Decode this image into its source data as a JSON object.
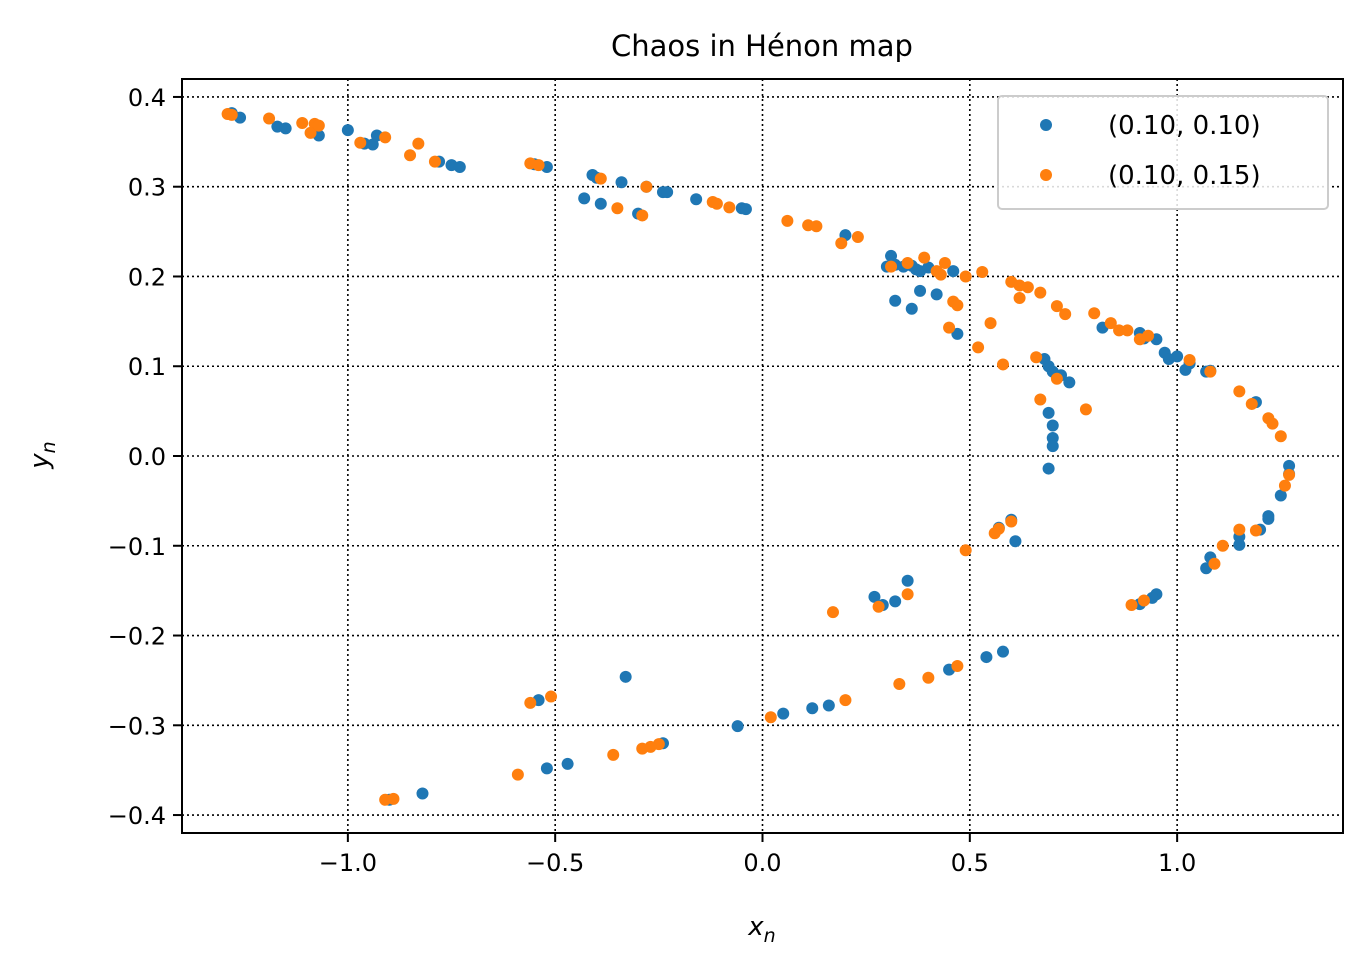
{
  "chart_data": {
    "type": "scatter",
    "title": "Chaos in Hénon map",
    "xlabel": "x",
    "xlabel_sub": "n",
    "ylabel": "y",
    "ylabel_sub": "n",
    "xlim": [
      -1.4,
      1.4
    ],
    "ylim": [
      -0.42,
      0.42
    ],
    "xticks": [
      -1.0,
      -0.5,
      0.0,
      0.5,
      1.0
    ],
    "xtick_labels": [
      "−1.0",
      "−0.5",
      "0.0",
      "0.5",
      "1.0"
    ],
    "yticks": [
      0.4,
      0.3,
      0.2,
      0.1,
      0.0,
      -0.1,
      -0.2,
      -0.3,
      -0.4
    ],
    "ytick_labels": [
      "0.4",
      "0.3",
      "0.2",
      "0.1",
      "0.0",
      "−0.1",
      "−0.2",
      "−0.3",
      "−0.4"
    ],
    "grid": true,
    "grid_style": "dotted",
    "legend_position": "top-right",
    "series": [
      {
        "name": "(0.10, 0.10)",
        "color": "#1f77b4",
        "points": [
          [
            -1.28,
            0.382
          ],
          [
            -1.26,
            0.377
          ],
          [
            -1.17,
            0.367
          ],
          [
            -1.15,
            0.365
          ],
          [
            -1.07,
            0.357
          ],
          [
            -1.0,
            0.363
          ],
          [
            -0.96,
            0.348
          ],
          [
            -0.94,
            0.347
          ],
          [
            -0.93,
            0.357
          ],
          [
            -0.78,
            0.328
          ],
          [
            -0.75,
            0.324
          ],
          [
            -0.73,
            0.322
          ],
          [
            -0.55,
            0.325
          ],
          [
            -0.52,
            0.322
          ],
          [
            -0.43,
            0.287
          ],
          [
            -0.41,
            0.313
          ],
          [
            -0.4,
            0.31
          ],
          [
            -0.39,
            0.281
          ],
          [
            -0.34,
            0.305
          ],
          [
            -0.3,
            0.27
          ],
          [
            -0.28,
            0.3
          ],
          [
            -0.24,
            0.294
          ],
          [
            -0.23,
            0.294
          ],
          [
            -0.16,
            0.286
          ],
          [
            -0.05,
            0.276
          ],
          [
            -0.04,
            0.275
          ],
          [
            0.2,
            0.246
          ],
          [
            0.3,
            0.211
          ],
          [
            0.31,
            0.223
          ],
          [
            0.32,
            0.213
          ],
          [
            0.34,
            0.211
          ],
          [
            0.36,
            0.212
          ],
          [
            0.37,
            0.208
          ],
          [
            0.38,
            0.206
          ],
          [
            0.4,
            0.21
          ],
          [
            0.46,
            0.206
          ],
          [
            0.32,
            0.173
          ],
          [
            0.36,
            0.164
          ],
          [
            0.38,
            0.184
          ],
          [
            0.42,
            0.18
          ],
          [
            0.47,
            0.136
          ],
          [
            0.82,
            0.143
          ],
          [
            0.91,
            0.137
          ],
          [
            0.92,
            0.131
          ],
          [
            0.95,
            0.13
          ],
          [
            0.97,
            0.115
          ],
          [
            0.98,
            0.108
          ],
          [
            1.0,
            0.111
          ],
          [
            1.02,
            0.096
          ],
          [
            1.03,
            0.103
          ],
          [
            1.07,
            0.094
          ],
          [
            1.08,
            0.095
          ],
          [
            0.68,
            0.108
          ],
          [
            0.69,
            0.1
          ],
          [
            0.7,
            0.094
          ],
          [
            0.72,
            0.09
          ],
          [
            0.74,
            0.082
          ],
          [
            1.19,
            0.06
          ],
          [
            0.69,
            0.048
          ],
          [
            0.7,
            0.034
          ],
          [
            0.7,
            0.02
          ],
          [
            0.7,
            0.011
          ],
          [
            0.69,
            -0.014
          ],
          [
            1.27,
            -0.011
          ],
          [
            1.27,
            -0.02
          ],
          [
            1.25,
            -0.044
          ],
          [
            1.22,
            -0.067
          ],
          [
            1.22,
            -0.07
          ],
          [
            1.2,
            -0.082
          ],
          [
            1.15,
            -0.09
          ],
          [
            1.15,
            -0.099
          ],
          [
            1.08,
            -0.113
          ],
          [
            1.07,
            -0.125
          ],
          [
            0.61,
            -0.095
          ],
          [
            0.6,
            -0.071
          ],
          [
            0.57,
            -0.08
          ],
          [
            0.95,
            -0.154
          ],
          [
            0.94,
            -0.158
          ],
          [
            0.91,
            -0.165
          ],
          [
            0.27,
            -0.157
          ],
          [
            0.29,
            -0.166
          ],
          [
            0.32,
            -0.162
          ],
          [
            0.35,
            -0.139
          ],
          [
            0.58,
            -0.218
          ],
          [
            0.54,
            -0.224
          ],
          [
            0.45,
            -0.238
          ],
          [
            0.16,
            -0.278
          ],
          [
            0.12,
            -0.281
          ],
          [
            0.05,
            -0.287
          ],
          [
            -0.06,
            -0.301
          ],
          [
            -0.33,
            -0.246
          ],
          [
            -0.24,
            -0.32
          ],
          [
            -0.54,
            -0.272
          ],
          [
            -0.47,
            -0.343
          ],
          [
            -0.52,
            -0.348
          ],
          [
            -0.82,
            -0.376
          ],
          [
            -0.9,
            -0.383
          ]
        ]
      },
      {
        "name": "(0.10, 0.15)",
        "color": "#ff7f0e",
        "points": [
          [
            -1.29,
            0.381
          ],
          [
            -1.28,
            0.38
          ],
          [
            -1.19,
            0.376
          ],
          [
            -1.11,
            0.371
          ],
          [
            -1.08,
            0.37
          ],
          [
            -1.09,
            0.36
          ],
          [
            -1.07,
            0.368
          ],
          [
            -0.97,
            0.349
          ],
          [
            -0.91,
            0.355
          ],
          [
            -0.85,
            0.335
          ],
          [
            -0.83,
            0.348
          ],
          [
            -0.79,
            0.328
          ],
          [
            -0.56,
            0.326
          ],
          [
            -0.54,
            0.324
          ],
          [
            -0.39,
            0.309
          ],
          [
            -0.35,
            0.276
          ],
          [
            -0.29,
            0.268
          ],
          [
            -0.28,
            0.3
          ],
          [
            -0.12,
            0.283
          ],
          [
            -0.11,
            0.281
          ],
          [
            -0.08,
            0.277
          ],
          [
            0.06,
            0.262
          ],
          [
            0.11,
            0.257
          ],
          [
            0.13,
            0.256
          ],
          [
            0.19,
            0.237
          ],
          [
            0.23,
            0.244
          ],
          [
            0.31,
            0.211
          ],
          [
            0.35,
            0.215
          ],
          [
            0.39,
            0.221
          ],
          [
            0.42,
            0.206
          ],
          [
            0.43,
            0.202
          ],
          [
            0.44,
            0.215
          ],
          [
            0.49,
            0.2
          ],
          [
            0.53,
            0.205
          ],
          [
            0.6,
            0.194
          ],
          [
            0.62,
            0.19
          ],
          [
            0.64,
            0.188
          ],
          [
            0.62,
            0.176
          ],
          [
            0.67,
            0.182
          ],
          [
            0.71,
            0.167
          ],
          [
            0.73,
            0.158
          ],
          [
            0.46,
            0.172
          ],
          [
            0.47,
            0.168
          ],
          [
            0.45,
            0.143
          ],
          [
            0.55,
            0.148
          ],
          [
            0.52,
            0.121
          ],
          [
            0.58,
            0.102
          ],
          [
            0.8,
            0.159
          ],
          [
            0.84,
            0.148
          ],
          [
            0.86,
            0.14
          ],
          [
            0.88,
            0.14
          ],
          [
            0.91,
            0.13
          ],
          [
            0.93,
            0.134
          ],
          [
            1.03,
            0.107
          ],
          [
            1.08,
            0.094
          ],
          [
            0.66,
            0.11
          ],
          [
            0.71,
            0.086
          ],
          [
            0.78,
            0.052
          ],
          [
            0.67,
            0.063
          ],
          [
            1.15,
            0.072
          ],
          [
            1.18,
            0.058
          ],
          [
            1.22,
            0.042
          ],
          [
            1.23,
            0.036
          ],
          [
            1.25,
            0.022
          ],
          [
            1.27,
            -0.021
          ],
          [
            1.26,
            -0.033
          ],
          [
            1.19,
            -0.083
          ],
          [
            1.15,
            -0.082
          ],
          [
            1.11,
            -0.1
          ],
          [
            1.09,
            -0.12
          ],
          [
            0.6,
            -0.073
          ],
          [
            0.57,
            -0.081
          ],
          [
            0.56,
            -0.086
          ],
          [
            0.49,
            -0.105
          ],
          [
            0.92,
            -0.161
          ],
          [
            0.89,
            -0.166
          ],
          [
            0.17,
            -0.174
          ],
          [
            0.28,
            -0.168
          ],
          [
            0.35,
            -0.154
          ],
          [
            0.47,
            -0.234
          ],
          [
            0.4,
            -0.247
          ],
          [
            0.33,
            -0.254
          ],
          [
            0.2,
            -0.272
          ],
          [
            0.02,
            -0.291
          ],
          [
            -0.51,
            -0.268
          ],
          [
            -0.56,
            -0.275
          ],
          [
            -0.25,
            -0.321
          ],
          [
            -0.27,
            -0.324
          ],
          [
            -0.29,
            -0.326
          ],
          [
            -0.36,
            -0.333
          ],
          [
            -0.59,
            -0.355
          ],
          [
            -0.91,
            -0.383
          ],
          [
            -0.89,
            -0.382
          ]
        ]
      }
    ]
  }
}
